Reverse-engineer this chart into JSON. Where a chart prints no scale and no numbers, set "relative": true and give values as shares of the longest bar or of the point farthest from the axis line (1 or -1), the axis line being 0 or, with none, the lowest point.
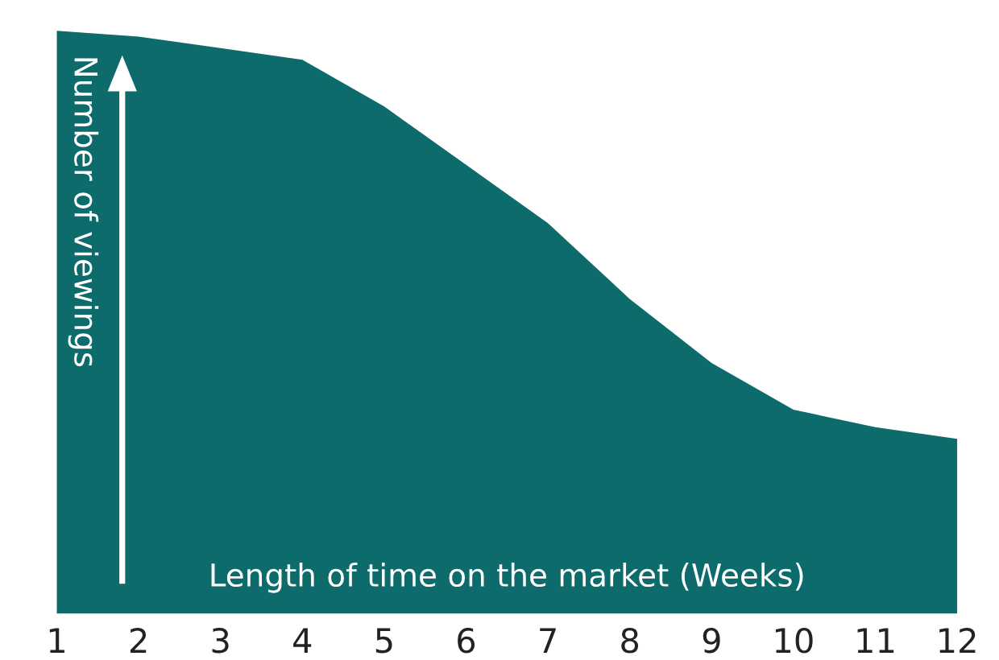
{
  "chart_data": {
    "type": "area",
    "relative": true,
    "xlabel": "Length of time on the market (Weeks)",
    "ylabel": "Number of viewings",
    "categories": [
      "1",
      "2",
      "3",
      "4",
      "5",
      "6",
      "7",
      "8",
      "9",
      "10",
      "11",
      "12"
    ],
    "series": [
      {
        "color": "#0e6b6b",
        "values": [
          1,
          0.99,
          0.97,
          0.95,
          0.87,
          0.77,
          0.67,
          0.54,
          0.43,
          0.35,
          0.32,
          0.3
        ]
      }
    ],
    "grid": false,
    "legend": false
  }
}
